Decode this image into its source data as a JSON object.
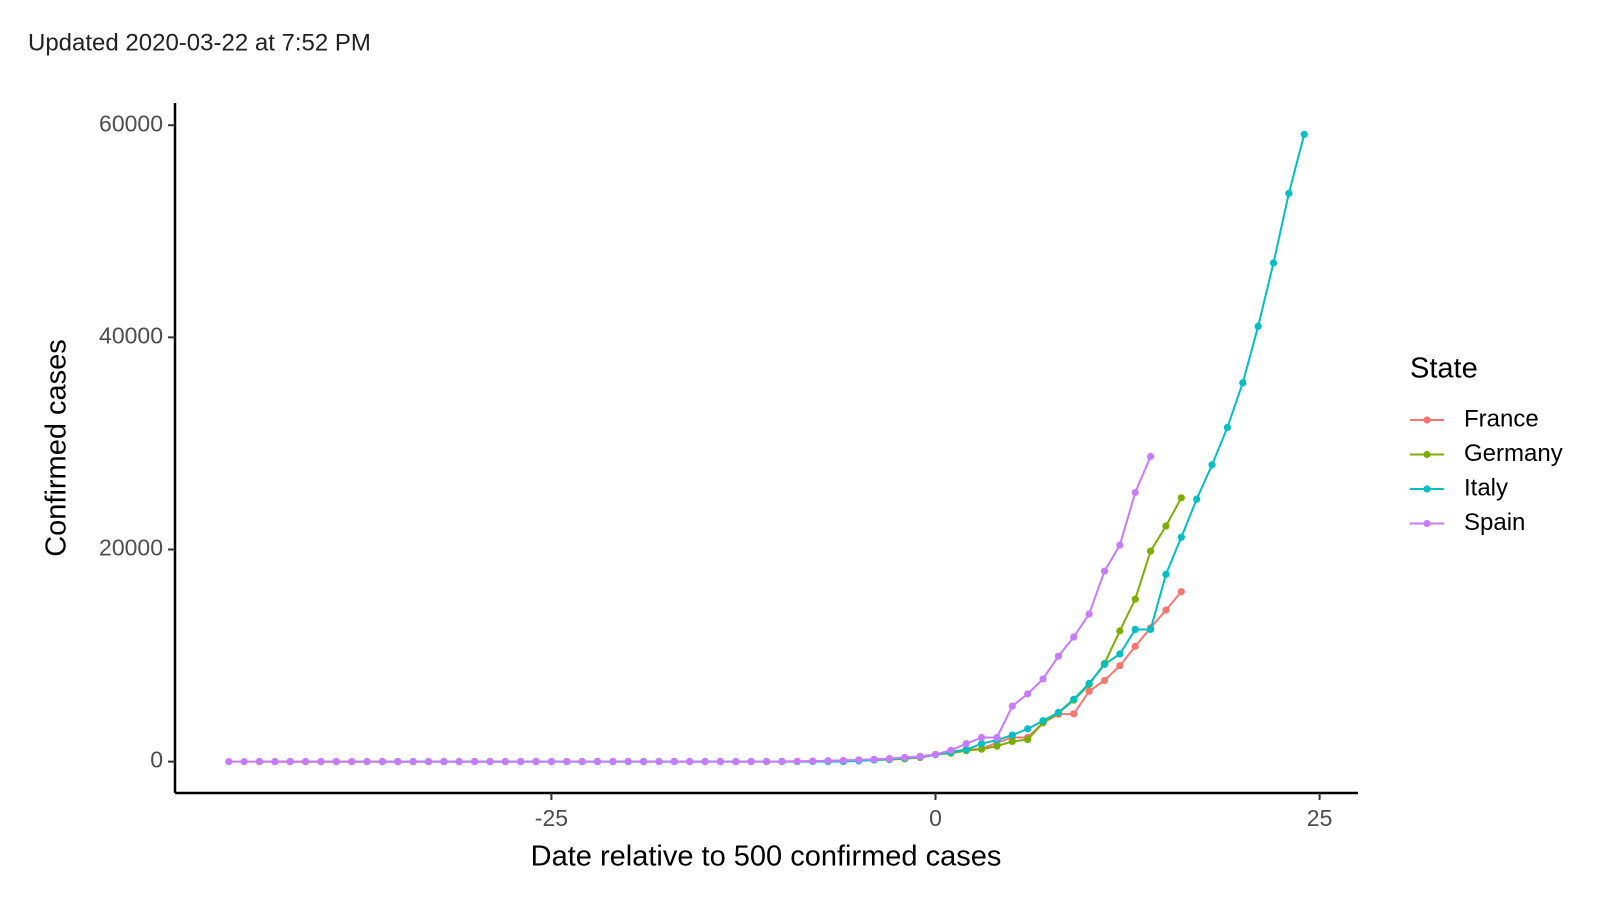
{
  "chart_data": {
    "type": "line",
    "subtitle": "Updated 2020-03-22 at 7:52 PM",
    "x_label": "Date relative to 500 confirmed cases",
    "y_label": "Confirmed cases",
    "legend_title": "State",
    "legend_position": "right",
    "grid": false,
    "x": [
      -46,
      -45,
      -44,
      -43,
      -42,
      -41,
      -40,
      -39,
      -38,
      -37,
      -36,
      -35,
      -34,
      -33,
      -32,
      -31,
      -30,
      -29,
      -28,
      -27,
      -26,
      -25,
      -24,
      -23,
      -22,
      -21,
      -20,
      -19,
      -18,
      -17,
      -16,
      -15,
      -14,
      -13,
      -12,
      -11,
      -10,
      -9,
      -8,
      -7,
      -6,
      -5,
      -4,
      -3,
      -2,
      -1,
      0,
      1,
      2,
      3,
      4,
      5,
      6,
      7,
      8,
      9,
      10,
      11,
      12,
      13,
      14,
      15,
      16,
      17,
      18,
      19,
      20,
      21,
      22,
      23,
      24
    ],
    "xlim": [
      -49.5,
      27.5
    ],
    "xticks": [
      -25,
      0,
      25
    ],
    "ylim": [
      -2957,
      62095
    ],
    "yticks": [
      0,
      20000,
      40000,
      60000
    ],
    "series": [
      {
        "name": "France",
        "color": "#F8766D",
        "values": [
          null,
          null,
          0,
          0,
          2,
          3,
          3,
          3,
          4,
          5,
          5,
          5,
          6,
          6,
          6,
          6,
          6,
          6,
          6,
          11,
          11,
          11,
          11,
          11,
          11,
          11,
          12,
          12,
          12,
          12,
          12,
          12,
          12,
          12,
          12,
          12,
          12,
          18,
          38,
          57,
          100,
          130,
          191,
          204,
          285,
          377,
          653,
          949,
          1126,
          1209,
          1784,
          2281,
          2281,
          3661,
          4469,
          4499,
          6633,
          7652,
          9043,
          10871,
          12612,
          14282,
          16018,
          null,
          null,
          null,
          null,
          null,
          null,
          null,
          null
        ]
      },
      {
        "name": "Germany",
        "color": "#7CAE00",
        "values": [
          null,
          null,
          0,
          0,
          0,
          0,
          0,
          1,
          4,
          4,
          4,
          5,
          8,
          10,
          12,
          12,
          12,
          12,
          13,
          13,
          14,
          14,
          16,
          16,
          16,
          16,
          16,
          16,
          16,
          16,
          16,
          16,
          16,
          16,
          16,
          16,
          16,
          21,
          26,
          57,
          57,
          130,
          159,
          196,
          262,
          482,
          670,
          799,
          1040,
          1176,
          1457,
          1908,
          2078,
          3675,
          4585,
          5795,
          7272,
          9257,
          12327,
          15320,
          19848,
          22213,
          24873,
          null,
          null,
          null,
          null,
          null,
          null,
          null,
          null
        ]
      },
      {
        "name": "Italy",
        "color": "#00BFC4",
        "values": [
          null,
          null,
          null,
          null,
          null,
          null,
          null,
          null,
          null,
          null,
          0,
          0,
          0,
          0,
          0,
          0,
          0,
          0,
          0,
          2,
          2,
          2,
          2,
          2,
          2,
          2,
          3,
          3,
          3,
          3,
          3,
          3,
          3,
          3,
          3,
          3,
          3,
          3,
          3,
          3,
          20,
          62,
          155,
          229,
          322,
          453,
          655,
          888,
          1128,
          1694,
          2036,
          2502,
          3089,
          3858,
          4636,
          5883,
          7375,
          9172,
          10149,
          12462,
          12462,
          17660,
          21157,
          24747,
          27980,
          31506,
          35713,
          41035,
          47021,
          53578,
          59138
        ]
      },
      {
        "name": "Spain",
        "color": "#C77CFF",
        "values": [
          0,
          0,
          0,
          0,
          0,
          0,
          0,
          0,
          0,
          0,
          1,
          1,
          1,
          1,
          1,
          1,
          1,
          1,
          2,
          2,
          2,
          2,
          2,
          2,
          2,
          2,
          2,
          2,
          2,
          2,
          2,
          2,
          2,
          2,
          6,
          13,
          15,
          32,
          45,
          84,
          120,
          165,
          222,
          282,
          400,
          500,
          673,
          1073,
          1695,
          2277,
          2277,
          5232,
          6391,
          7798,
          9942,
          11748,
          13910,
          17963,
          20410,
          25374,
          28768,
          null,
          null,
          null,
          null,
          null,
          null,
          null,
          null,
          null,
          null
        ]
      }
    ]
  }
}
